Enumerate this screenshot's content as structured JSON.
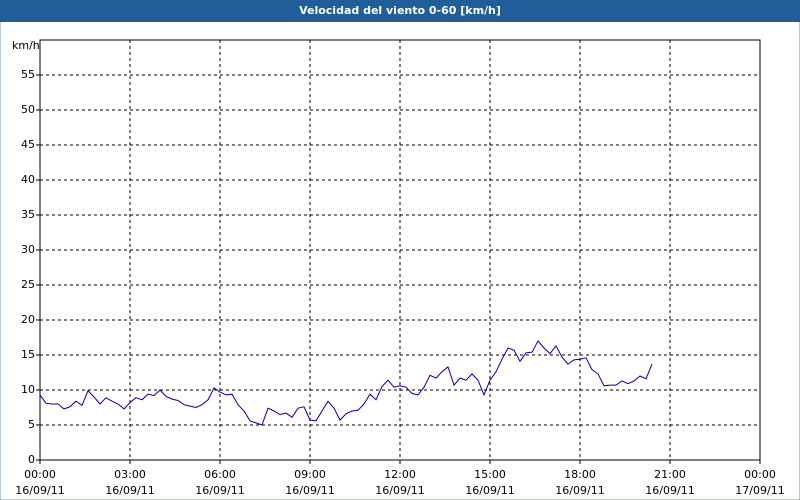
{
  "chart_data": {
    "type": "line",
    "title": "Velocidad del viento 0-60 [km/h]",
    "y_label": "km/h",
    "color": "#0000b0",
    "grid": true,
    "ylim": [
      0,
      60
    ],
    "yticks": [
      0,
      5,
      10,
      15,
      20,
      25,
      30,
      35,
      40,
      45,
      50,
      55
    ],
    "xlim": [
      0,
      24
    ],
    "xticks": [
      {
        "value": 0,
        "label": "00:00"
      },
      {
        "value": 3,
        "label": "03:00"
      },
      {
        "value": 6,
        "label": "06:00"
      },
      {
        "value": 9,
        "label": "09:00"
      },
      {
        "value": 12,
        "label": "12:00"
      },
      {
        "value": 15,
        "label": "15:00"
      },
      {
        "value": 18,
        "label": "18:00"
      },
      {
        "value": 21,
        "label": "21:00"
      },
      {
        "value": 24,
        "label": "00:00"
      }
    ],
    "xtick_dates": [
      "16/09/11",
      "16/09/11",
      "16/09/11",
      "16/09/11",
      "16/09/11",
      "16/09/11",
      "16/09/11",
      "16/09/11",
      "17/09/11"
    ],
    "x": [
      0,
      0.2,
      0.4,
      0.6,
      0.8,
      1,
      1.2,
      1.4,
      1.6,
      1.8,
      2,
      2.2,
      2.4,
      2.6,
      2.8,
      3,
      3.2,
      3.4,
      3.6,
      3.8,
      4,
      4.2,
      4.4,
      4.6,
      4.8,
      5,
      5.2,
      5.4,
      5.6,
      5.8,
      6,
      6.2,
      6.4,
      6.6,
      6.8,
      7,
      7.2,
      7.4,
      7.6,
      7.8,
      8,
      8.2,
      8.4,
      8.6,
      8.8,
      9,
      9.2,
      9.4,
      9.6,
      9.8,
      10,
      10.2,
      10.4,
      10.6,
      10.8,
      11,
      11.2,
      11.4,
      11.6,
      11.8,
      12,
      12.2,
      12.4,
      12.6,
      12.8,
      13,
      13.2,
      13.4,
      13.6,
      13.8,
      14,
      14.2,
      14.4,
      14.6,
      14.8,
      15,
      15.2,
      15.4,
      15.6,
      15.8,
      16,
      16.2,
      16.4,
      16.6,
      16.8,
      17,
      17.2,
      17.4,
      17.6,
      17.8,
      18,
      18.2,
      18.4,
      18.6,
      18.8,
      19,
      19.2,
      19.4,
      19.6,
      19.8,
      20,
      20.2,
      20.4
    ],
    "values": [
      9.3,
      8.1,
      8.0,
      8.0,
      7.3,
      7.6,
      8.4,
      7.8,
      9.9,
      9.0,
      8.0,
      8.9,
      8.4,
      8.0,
      7.3,
      8.2,
      8.9,
      8.6,
      9.4,
      9.2,
      10.0,
      9.1,
      8.7,
      8.5,
      7.9,
      7.7,
      7.5,
      7.9,
      8.6,
      10.3,
      9.7,
      9.3,
      9.4,
      7.9,
      7.0,
      5.6,
      5.3,
      5.0,
      7.4,
      7.0,
      6.5,
      6.7,
      6.1,
      7.4,
      7.6,
      5.7,
      5.6,
      7.0,
      8.4,
      7.4,
      5.7,
      6.6,
      7.0,
      7.1,
      8.0,
      9.4,
      8.6,
      10.5,
      11.4,
      10.4,
      10.6,
      10.4,
      9.5,
      9.3,
      10.4,
      12.1,
      11.7,
      12.6,
      13.3,
      10.7,
      11.7,
      11.4,
      12.3,
      11.4,
      9.3,
      11.4,
      12.6,
      14.4,
      16.0,
      15.7,
      14.1,
      15.3,
      15.4,
      17.0,
      16.0,
      15.2,
      16.3,
      14.7,
      13.7,
      14.3,
      14.4,
      14.6,
      12.9,
      12.3,
      10.6,
      10.7,
      10.7,
      11.3,
      10.9,
      11.3,
      12.0,
      11.6,
      13.7
    ]
  }
}
